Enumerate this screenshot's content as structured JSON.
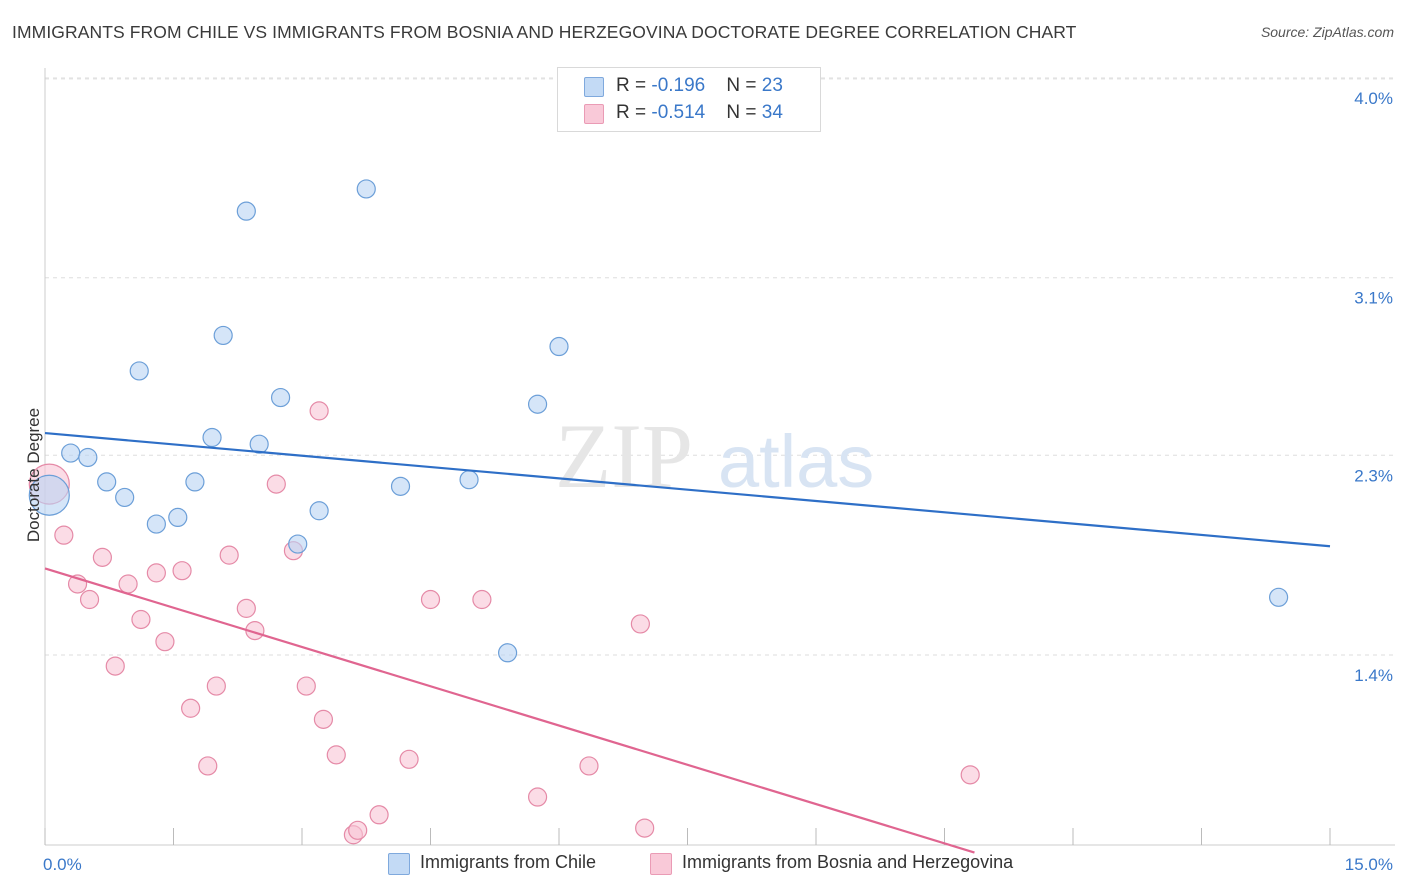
{
  "header": {
    "title": "IMMIGRANTS FROM CHILE VS IMMIGRANTS FROM BOSNIA AND HERZEGOVINA DOCTORATE DEGREE CORRELATION CHART",
    "source": "Source: ZipAtlas.com"
  },
  "legend_box": {
    "rows": [
      {
        "r_label": "R = ",
        "r_value": "-0.196",
        "n_label": "N = ",
        "n_value": "23"
      },
      {
        "r_label": "R = ",
        "r_value": "-0.514",
        "n_label": "N = ",
        "n_value": "34"
      }
    ]
  },
  "watermark": {
    "zip": "ZIP",
    "atlas": "atlas"
  },
  "colors": {
    "chile_fill": "#b9d3f3",
    "chile_stroke": "#6c9fd8",
    "chile_line": "#2e6fc7",
    "bosnia_fill": "#f8c5d5",
    "bosnia_stroke": "#e58aa7",
    "bosnia_line": "#e06590",
    "grid": "#dddddd",
    "axis_label": "#3a78c9"
  },
  "chart_data": {
    "type": "scatter",
    "title": "IMMIGRANTS FROM CHILE VS IMMIGRANTS FROM BOSNIA AND HERZEGOVINA DOCTORATE DEGREE CORRELATION CHART",
    "xlabel": "",
    "ylabel": "Doctorate Degree",
    "xlim": [
      0,
      15
    ],
    "ylim": [
      0.5,
      4.1
    ],
    "x_tick_labels": [
      "0.0%",
      "15.0%"
    ],
    "y_ticks": [
      1.4,
      2.3,
      3.1,
      4.0
    ],
    "y_tick_labels": [
      "1.4%",
      "2.3%",
      "3.1%",
      "4.0%"
    ],
    "legend_position": "bottom",
    "series": [
      {
        "name": "Immigrants from Chile",
        "r": -0.196,
        "n": 23,
        "trend": {
          "x": [
            0,
            15
          ],
          "y": [
            2.4,
            1.89
          ]
        },
        "points": [
          {
            "x": 0.05,
            "y": 2.12,
            "size": "large"
          },
          {
            "x": 0.3,
            "y": 2.31
          },
          {
            "x": 0.5,
            "y": 2.29
          },
          {
            "x": 0.72,
            "y": 2.18
          },
          {
            "x": 0.93,
            "y": 2.11
          },
          {
            "x": 1.1,
            "y": 2.68
          },
          {
            "x": 1.3,
            "y": 1.99
          },
          {
            "x": 1.55,
            "y": 2.02
          },
          {
            "x": 1.75,
            "y": 2.18
          },
          {
            "x": 1.95,
            "y": 2.38
          },
          {
            "x": 2.08,
            "y": 2.84
          },
          {
            "x": 2.35,
            "y": 3.4
          },
          {
            "x": 2.5,
            "y": 2.35
          },
          {
            "x": 2.75,
            "y": 2.56
          },
          {
            "x": 2.95,
            "y": 1.9
          },
          {
            "x": 3.2,
            "y": 2.05
          },
          {
            "x": 3.75,
            "y": 3.5
          },
          {
            "x": 4.15,
            "y": 2.16
          },
          {
            "x": 4.95,
            "y": 2.19
          },
          {
            "x": 5.4,
            "y": 1.41
          },
          {
            "x": 5.75,
            "y": 2.53
          },
          {
            "x": 6.0,
            "y": 2.79
          },
          {
            "x": 14.4,
            "y": 1.66
          }
        ]
      },
      {
        "name": "Immigrants from Bosnia and Herzegovina",
        "r": -0.514,
        "n": 34,
        "trend": {
          "x": [
            0,
            10.85
          ],
          "y": [
            1.79,
            0.51
          ]
        },
        "points": [
          {
            "x": 0.05,
            "y": 2.17,
            "size": "large"
          },
          {
            "x": 0.22,
            "y": 1.94
          },
          {
            "x": 0.38,
            "y": 1.72
          },
          {
            "x": 0.52,
            "y": 1.65
          },
          {
            "x": 0.67,
            "y": 1.84
          },
          {
            "x": 0.82,
            "y": 1.35
          },
          {
            "x": 0.97,
            "y": 1.72
          },
          {
            "x": 1.12,
            "y": 1.56
          },
          {
            "x": 1.3,
            "y": 1.77
          },
          {
            "x": 1.4,
            "y": 1.46
          },
          {
            "x": 1.6,
            "y": 1.78
          },
          {
            "x": 1.7,
            "y": 1.16
          },
          {
            "x": 1.9,
            "y": 0.9
          },
          {
            "x": 2.0,
            "y": 1.26
          },
          {
            "x": 2.15,
            "y": 1.85
          },
          {
            "x": 2.35,
            "y": 1.61
          },
          {
            "x": 2.45,
            "y": 1.51
          },
          {
            "x": 2.7,
            "y": 2.17
          },
          {
            "x": 2.9,
            "y": 1.87
          },
          {
            "x": 3.05,
            "y": 1.26
          },
          {
            "x": 3.2,
            "y": 2.5
          },
          {
            "x": 3.25,
            "y": 1.11
          },
          {
            "x": 3.4,
            "y": 0.95
          },
          {
            "x": 3.6,
            "y": 0.59
          },
          {
            "x": 3.65,
            "y": 0.61
          },
          {
            "x": 3.9,
            "y": 0.68
          },
          {
            "x": 4.25,
            "y": 0.93
          },
          {
            "x": 4.5,
            "y": 1.65
          },
          {
            "x": 5.1,
            "y": 1.65
          },
          {
            "x": 5.75,
            "y": 0.76
          },
          {
            "x": 6.35,
            "y": 0.9
          },
          {
            "x": 6.95,
            "y": 1.54
          },
          {
            "x": 7.0,
            "y": 0.62
          },
          {
            "x": 10.8,
            "y": 0.86
          }
        ]
      }
    ]
  }
}
